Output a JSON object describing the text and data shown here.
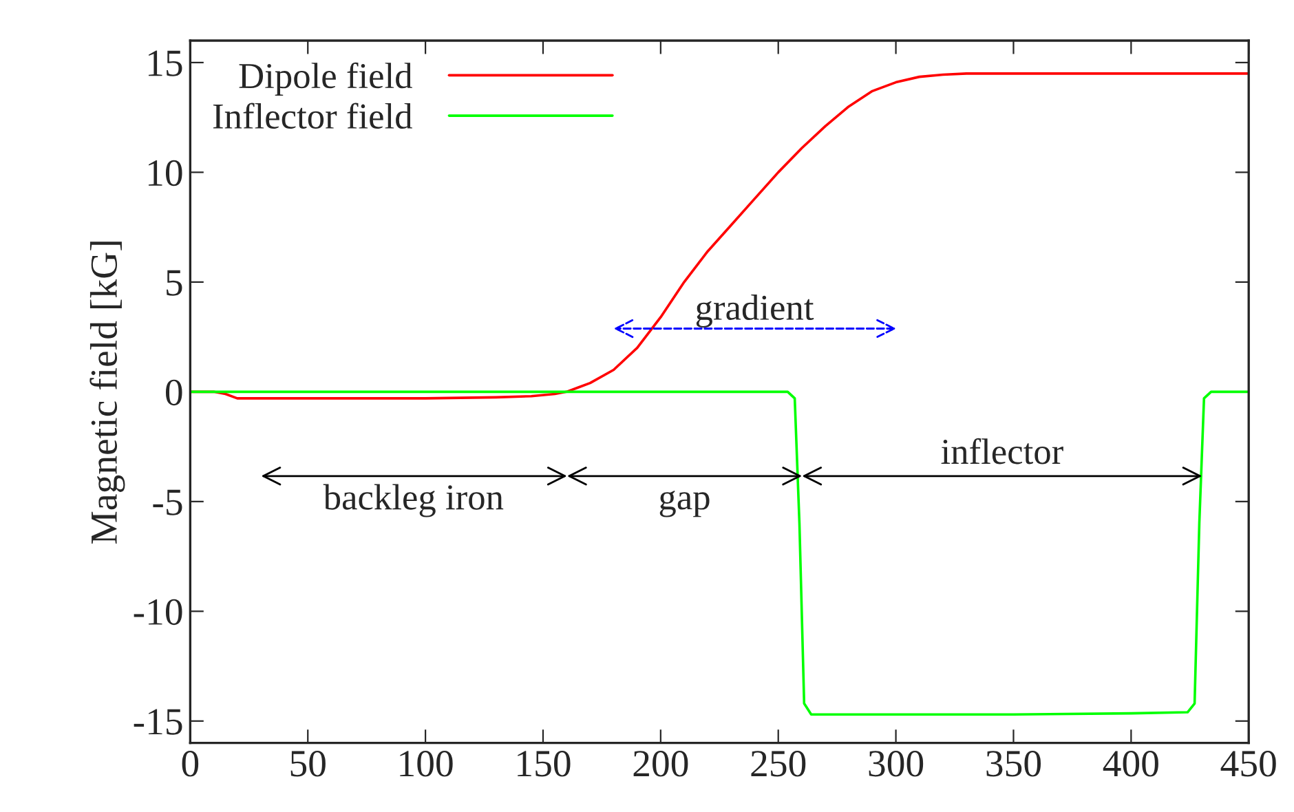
{
  "chart_data": {
    "type": "line",
    "ylabel": "Magnetic field [kG]",
    "xlim": [
      0,
      450
    ],
    "xticks": [
      0,
      50,
      100,
      150,
      200,
      250,
      300,
      350,
      400,
      450
    ],
    "ylim": [
      -16,
      16
    ],
    "yticks": [
      -15,
      -10,
      -5,
      0,
      5,
      10,
      15
    ],
    "grid": false,
    "legend": "top left",
    "line_style": "solid",
    "marker": "none",
    "series": [
      {
        "name": "Dipole field",
        "color": "#ff0000",
        "x": [
          0,
          10,
          15,
          20,
          30,
          50,
          100,
          130,
          145,
          155,
          160,
          165,
          170,
          180,
          190,
          200,
          210,
          220,
          230,
          240,
          250,
          260,
          270,
          280,
          290,
          300,
          310,
          320,
          330,
          340,
          360,
          400,
          450
        ],
        "values": [
          0,
          0,
          -0.1,
          -0.3,
          -0.3,
          -0.3,
          -0.3,
          -0.25,
          -0.2,
          -0.1,
          0,
          0.2,
          0.4,
          1.0,
          2.0,
          3.4,
          5.0,
          6.4,
          7.6,
          8.8,
          10.0,
          11.1,
          12.1,
          13.0,
          13.7,
          14.1,
          14.35,
          14.45,
          14.5,
          14.5,
          14.5,
          14.5,
          14.5
        ]
      },
      {
        "name": "Inflector field",
        "color": "#00ff00",
        "x": [
          0,
          254,
          257,
          259,
          261,
          264,
          300,
          350,
          400,
          424,
          427,
          429,
          431,
          434,
          450
        ],
        "values": [
          0,
          0,
          -0.3,
          -6,
          -14.2,
          -14.7,
          -14.7,
          -14.7,
          -14.65,
          -14.6,
          -14.2,
          -6,
          -0.3,
          0,
          0
        ]
      }
    ],
    "annotations": [
      "backleg iron",
      "gap",
      "inflector",
      "gradient"
    ]
  }
}
